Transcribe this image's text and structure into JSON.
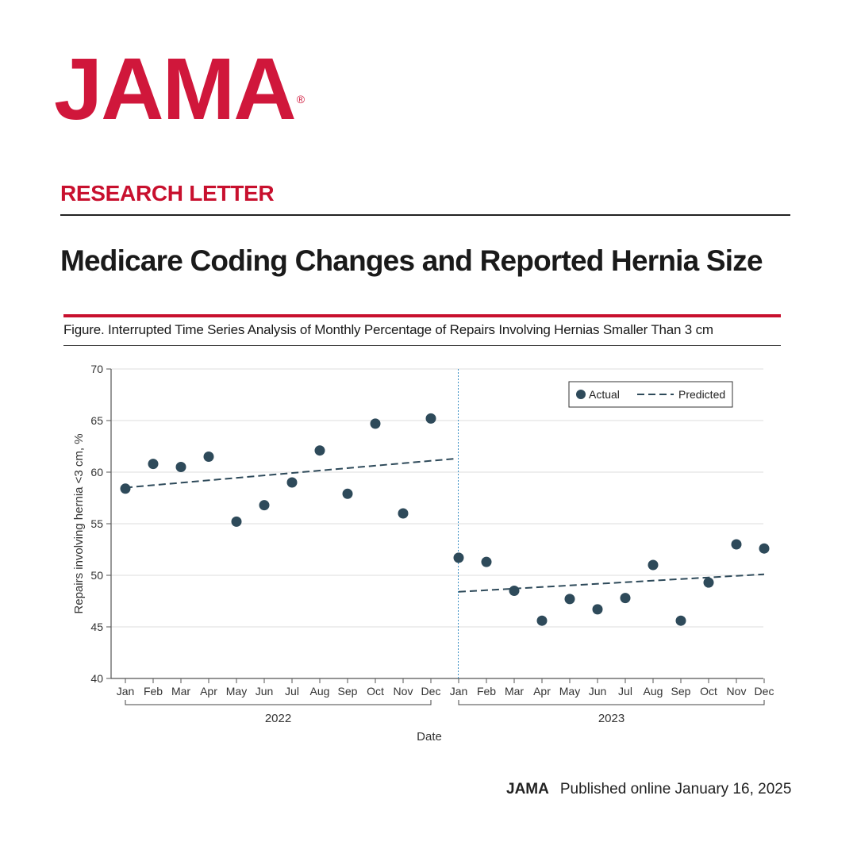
{
  "header": {
    "logo_text": "JAMA",
    "logo_mark": "®",
    "article_type": "RESEARCH LETTER",
    "title": "Medicare Coding Changes and Reported Hernia Size"
  },
  "figure": {
    "title": "Figure. Interrupted Time Series Analysis of Monthly Percentage of Repairs Involving Hernias Smaller Than 3 cm"
  },
  "chart_data": {
    "type": "scatter",
    "xlabel": "Date",
    "ylabel": "Repairs involving hernia <3 cm, %",
    "ylim": [
      40,
      70
    ],
    "yticks": [
      40,
      45,
      50,
      55,
      60,
      65,
      70
    ],
    "grid": true,
    "legend": {
      "position": "top-right",
      "entries": [
        "Actual",
        "Predicted"
      ]
    },
    "categories": [
      "Jan",
      "Feb",
      "Mar",
      "Apr",
      "May",
      "Jun",
      "Jul",
      "Aug",
      "Sep",
      "Oct",
      "Nov",
      "Dec",
      "Jan",
      "Feb",
      "Mar",
      "Apr",
      "May",
      "Jun",
      "Jul",
      "Aug",
      "Sep",
      "Oct",
      "Nov",
      "Dec"
    ],
    "year_groups": [
      {
        "label": "2022",
        "from": 0,
        "to": 11
      },
      {
        "label": "2023",
        "from": 12,
        "to": 23
      }
    ],
    "interruption_index": 12,
    "series": [
      {
        "name": "Actual",
        "style": "points",
        "values": [
          58.4,
          60.8,
          60.5,
          61.5,
          55.2,
          56.8,
          59.0,
          62.1,
          57.9,
          64.7,
          56.0,
          65.2,
          51.7,
          51.3,
          48.5,
          45.6,
          47.7,
          46.7,
          47.8,
          51.0,
          45.6,
          49.3,
          53.0,
          52.6
        ]
      },
      {
        "name": "Predicted",
        "style": "dashed",
        "segments": [
          {
            "x": [
              0,
              11.85
            ],
            "y": [
              58.5,
              61.3
            ]
          },
          {
            "x": [
              12,
              23
            ],
            "y": [
              48.4,
              50.1
            ]
          }
        ]
      }
    ],
    "colors": {
      "points": "#2e4a5a",
      "line": "#2e4a5a",
      "interruption": "#3a8fc4",
      "grid": "#dddddd",
      "axis": "#555555"
    }
  },
  "footer": {
    "brand": "JAMA",
    "published": "Published online January  16, 2025"
  }
}
